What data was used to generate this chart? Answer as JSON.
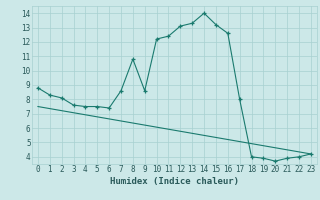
{
  "xlabel": "Humidex (Indice chaleur)",
  "ylabel": "",
  "bg_color": "#cce8e8",
  "line_color": "#1a7a6e",
  "marker": "+",
  "xlim": [
    -0.5,
    23.5
  ],
  "ylim": [
    3.5,
    14.5
  ],
  "xticks": [
    0,
    1,
    2,
    3,
    4,
    5,
    6,
    7,
    8,
    9,
    10,
    11,
    12,
    13,
    14,
    15,
    16,
    17,
    18,
    19,
    20,
    21,
    22,
    23
  ],
  "yticks": [
    4,
    5,
    6,
    7,
    8,
    9,
    10,
    11,
    12,
    13,
    14
  ],
  "series1_x": [
    0,
    1,
    2,
    3,
    4,
    5,
    6,
    7,
    8,
    9,
    10,
    11,
    12,
    13,
    14,
    15,
    16,
    17,
    18,
    19,
    20,
    21,
    22,
    23
  ],
  "series1_y": [
    8.8,
    8.3,
    8.1,
    7.6,
    7.5,
    7.5,
    7.4,
    8.6,
    10.8,
    8.6,
    12.2,
    12.4,
    13.1,
    13.3,
    14.0,
    13.2,
    12.6,
    8.0,
    4.0,
    3.9,
    3.7,
    3.9,
    4.0,
    4.2
  ],
  "series2_x": [
    0,
    23
  ],
  "series2_y": [
    7.5,
    4.2
  ],
  "grid_color": "#a8d0d0",
  "font_color": "#2a5a5a",
  "axis_fontsize": 6.5,
  "tick_fontsize": 5.5
}
